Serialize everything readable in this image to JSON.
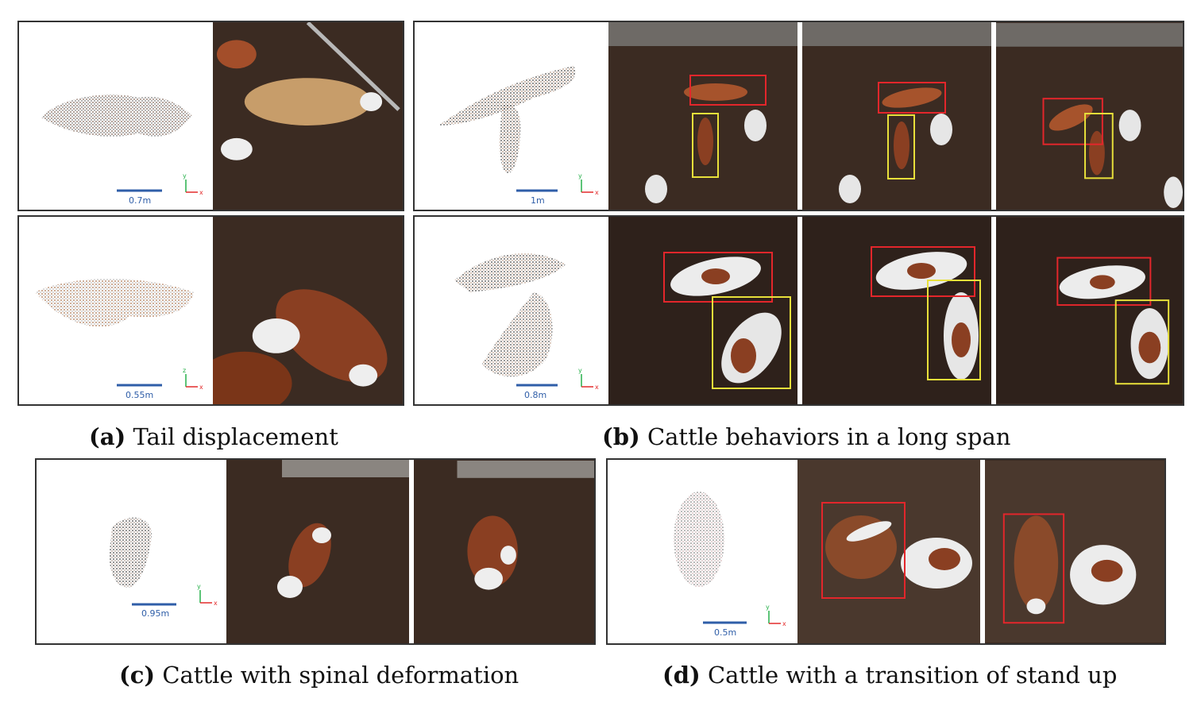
{
  "panels": {
    "a": {
      "letter": "(a)",
      "caption": "Tail displacement",
      "rows": [
        {
          "scale_label": "0.7m",
          "axis_v": "y",
          "axis_h": "x"
        },
        {
          "scale_label": "0.55m",
          "axis_v": "z",
          "axis_h": "x"
        }
      ]
    },
    "b": {
      "letter": "(b)",
      "caption": "Cattle behaviors in a long span",
      "rows": [
        {
          "scale_label": "1m",
          "axis_v": "y",
          "axis_h": "x"
        },
        {
          "scale_label": "0.8m",
          "axis_v": "y",
          "axis_h": "x"
        }
      ]
    },
    "c": {
      "letter": "(c)",
      "caption": "Cattle with spinal deformation",
      "scale_label": "0.95m",
      "axis_v": "y",
      "axis_h": "x"
    },
    "d": {
      "letter": "(d)",
      "caption": "Cattle with a transition of stand up",
      "scale_label": "0.5m",
      "axis_v": "y",
      "axis_h": "x"
    }
  },
  "colors": {
    "soil": "#3a2a22",
    "box_red": "#e3262b",
    "box_yellow": "#e8e03a",
    "scale_bar": "#2f5ea8",
    "axis_x": "#e32b2b",
    "axis_y": "#27b04a",
    "axis_z": "#2f5ea8"
  }
}
